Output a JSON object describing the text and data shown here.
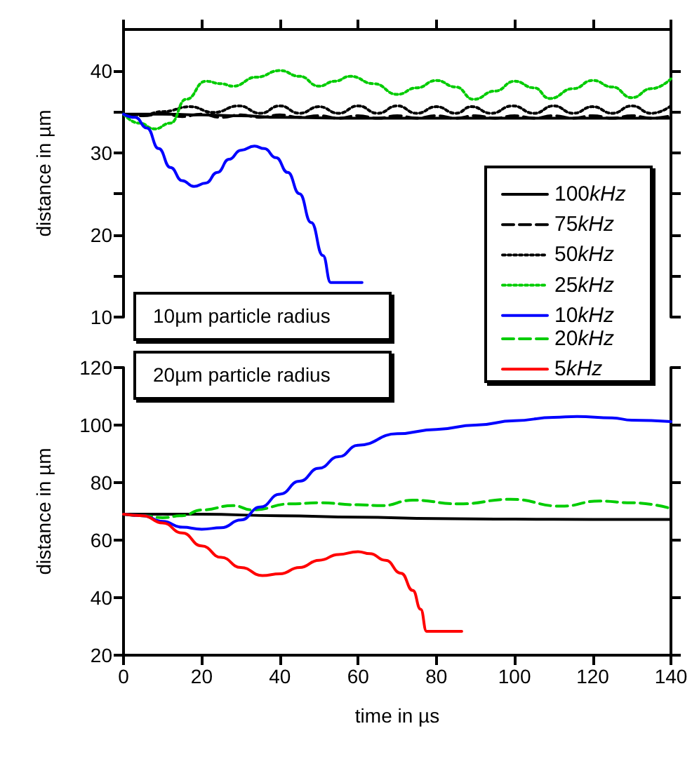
{
  "chart_data": [
    {
      "type": "line",
      "ylabel": "distance in µm",
      "annotations": [
        "10µm particle radius"
      ],
      "legend": "right",
      "grid": false,
      "tick_labels": "y",
      "xlim": [
        0,
        140
      ],
      "xticks": [
        0,
        20,
        40,
        60,
        80,
        100,
        120,
        140
      ],
      "ylim": [
        10,
        45
      ],
      "yticks": [
        10,
        {
          "value": 15,
          "label": null
        },
        20,
        {
          "value": 25,
          "label": null
        },
        30,
        {
          "value": 35,
          "label": null
        },
        40
      ],
      "series": [
        {
          "name": "100kHz",
          "color": "#000000",
          "line_style": "solid",
          "x": [
            0,
            10,
            20,
            30,
            40,
            60,
            80,
            100,
            120,
            140
          ],
          "values": [
            34.7,
            34.7,
            34.6,
            34.5,
            34.3,
            34.2,
            34.2,
            34.2,
            34.2,
            34.2
          ]
        },
        {
          "name": "75kHz",
          "color": "#000000",
          "line_style": "dashed",
          "x": [
            0,
            5,
            10,
            15,
            20,
            25,
            30,
            35,
            40,
            45,
            50,
            55,
            60,
            65,
            70,
            75,
            80,
            85,
            90,
            95,
            100,
            105,
            110,
            115,
            120,
            125,
            130,
            135,
            140
          ],
          "values": [
            34.7,
            34.5,
            34.8,
            34.4,
            34.7,
            34.3,
            34.6,
            34.3,
            34.6,
            34.3,
            34.5,
            34.2,
            34.5,
            34.2,
            34.5,
            34.2,
            34.5,
            34.2,
            34.5,
            34.2,
            34.5,
            34.2,
            34.5,
            34.2,
            34.5,
            34.2,
            34.5,
            34.2,
            34.5
          ]
        },
        {
          "name": "50kHz",
          "color": "#000000",
          "line_style": "dotted",
          "x": [
            0,
            5,
            10,
            17,
            23,
            29.5,
            35,
            40,
            45,
            50,
            55,
            60,
            65,
            70,
            75,
            80,
            85,
            89,
            94,
            99.5,
            105,
            110,
            115,
            120,
            125,
            130,
            135,
            140
          ],
          "values": [
            34.7,
            34.6,
            35.0,
            35.6,
            34.9,
            35.7,
            34.8,
            35.7,
            34.8,
            35.6,
            34.8,
            35.7,
            34.8,
            35.7,
            34.8,
            35.6,
            34.8,
            35.6,
            34.8,
            35.7,
            34.8,
            35.7,
            34.8,
            35.6,
            34.8,
            35.7,
            34.8,
            35.7
          ]
        },
        {
          "name": "25kHz",
          "color": "#00cc00",
          "line_style": "dotted",
          "x": [
            0,
            4,
            8,
            12,
            16,
            21,
            25,
            28,
            34,
            40,
            45,
            50,
            54,
            58,
            64,
            70,
            75,
            80,
            85,
            89.5,
            95,
            100,
            105,
            109,
            115,
            120,
            125,
            130,
            135,
            140
          ],
          "values": [
            34.7,
            33.6,
            32.9,
            33.6,
            36.5,
            38.7,
            38.4,
            38.1,
            39.2,
            40.0,
            39.3,
            38.1,
            38.7,
            39.3,
            38.4,
            37.1,
            37.9,
            38.8,
            38.0,
            36.5,
            37.5,
            38.7,
            37.9,
            36.6,
            37.8,
            38.8,
            38.0,
            36.7,
            37.8,
            39.0
          ]
        },
        {
          "name": "10kHz",
          "color": "#0000ff",
          "line_style": "solid",
          "x": [
            0,
            3,
            6,
            9,
            12,
            15,
            18,
            21,
            24,
            27,
            30,
            33.5,
            36,
            39,
            42,
            45,
            48,
            51,
            53,
            61
          ],
          "values": [
            34.7,
            34.3,
            33.0,
            30.5,
            28.2,
            26.6,
            25.9,
            26.3,
            27.6,
            29.2,
            30.3,
            30.8,
            30.5,
            29.4,
            27.6,
            25.0,
            21.5,
            17.5,
            14.2,
            14.2
          ]
        }
      ]
    },
    {
      "type": "line",
      "xlabel": "time in µs",
      "ylabel": "distance in µm",
      "annotations": [
        "20µm particle radius"
      ],
      "legend": "top right",
      "grid": false,
      "xlim": [
        0,
        140
      ],
      "xticks": [
        0,
        20,
        40,
        60,
        80,
        100,
        120,
        140
      ],
      "ylim": [
        20,
        120
      ],
      "yticks": [
        20,
        40,
        60,
        80,
        100,
        120
      ],
      "series": [
        {
          "name": "100kHz",
          "color": "#000000",
          "line_style": "solid",
          "x": [
            0,
            20,
            40,
            60,
            80,
            100,
            120,
            140
          ],
          "values": [
            69,
            69,
            68.5,
            68,
            67.5,
            67.3,
            67.2,
            67.2
          ]
        },
        {
          "name": "20kHz",
          "color": "#00cc00",
          "line_style": "dashed",
          "x": [
            0,
            5,
            10,
            15,
            20,
            28,
            33,
            42.7,
            50,
            60,
            66,
            74,
            85.8,
            99,
            112,
            121.7,
            130,
            140
          ],
          "values": [
            69,
            68.5,
            67.8,
            68.5,
            70.5,
            72,
            70.5,
            72.6,
            73,
            72.3,
            72,
            73.9,
            72.6,
            74.2,
            71.8,
            73.6,
            73,
            71
          ]
        },
        {
          "name": "10kHz",
          "color": "#0000ff",
          "line_style": "solid",
          "x": [
            0,
            5,
            10,
            15,
            20,
            25,
            30,
            35,
            40,
            45,
            50,
            55,
            60,
            70,
            80,
            90,
            100,
            110,
            116,
            125,
            130,
            140
          ],
          "values": [
            69,
            68.5,
            66.5,
            64.5,
            63.8,
            64.3,
            67,
            71.5,
            76,
            80.5,
            85,
            89,
            93,
            97,
            98.5,
            100,
            101.5,
            102.7,
            103,
            102.5,
            101.7,
            101.2
          ]
        },
        {
          "name": "5kHz",
          "color": "#ff0000",
          "line_style": "solid",
          "x": [
            0,
            5,
            10,
            15,
            20,
            25,
            30,
            35.5,
            40,
            45,
            50,
            55,
            60,
            63,
            67,
            71,
            74,
            76,
            77.5,
            86.5
          ],
          "values": [
            69,
            68.5,
            66,
            62.5,
            58,
            54,
            50.5,
            47.7,
            48.3,
            50.5,
            53,
            55,
            56,
            55.3,
            53,
            48.5,
            42.5,
            36,
            28.3,
            28.3
          ]
        }
      ]
    }
  ]
}
